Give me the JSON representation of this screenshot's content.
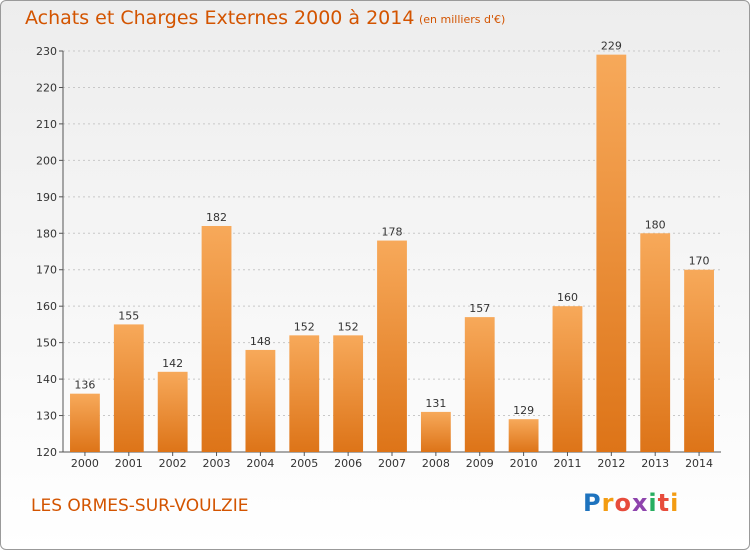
{
  "title": "Achats et Charges Externes 2000 à 2014",
  "subtitle": "(en milliers d'€)",
  "commune": "LES ORMES-SUR-VOULZIE",
  "logo": {
    "text": "Proxiti",
    "letters": [
      "P",
      "r",
      "o",
      "x",
      "i",
      "t",
      "i"
    ]
  },
  "colors": {
    "bar_light": "#f7a95a",
    "bar_dark": "#e07a1e",
    "title": "#d35400",
    "grid": "#cccccc"
  },
  "chart_data": {
    "type": "bar",
    "title": "Achats et Charges Externes 2000 à 2014",
    "subtitle": "(en milliers d'€)",
    "categories": [
      "2000",
      "2001",
      "2002",
      "2003",
      "2004",
      "2005",
      "2006",
      "2007",
      "2008",
      "2009",
      "2010",
      "2011",
      "2012",
      "2013",
      "2014"
    ],
    "values": [
      136,
      155,
      142,
      182,
      148,
      152,
      152,
      178,
      131,
      157,
      129,
      160,
      229,
      180,
      170
    ],
    "ylim": [
      120,
      230
    ],
    "yticks": [
      120,
      130,
      140,
      150,
      160,
      170,
      180,
      190,
      200,
      210,
      220,
      230
    ],
    "grid": true,
    "grid_style": "dashed horizontal",
    "xlabel": "",
    "ylabel": "",
    "data_labels": true
  }
}
